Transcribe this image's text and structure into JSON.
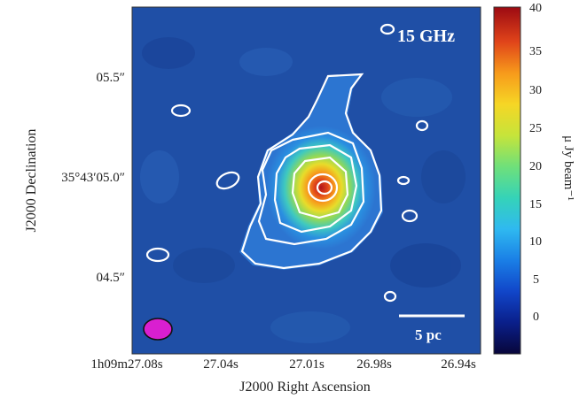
{
  "panel_label": "15 GHz",
  "scale_bar": {
    "label": "5 pc"
  },
  "x_axis": {
    "title": "J2000 Right Ascension",
    "tick_labels": [
      "1h09m27.08s",
      "27.04s",
      "27.01s",
      "26.98s",
      "26.94s"
    ]
  },
  "y_axis": {
    "title": "J2000 Declination",
    "tick_labels": [
      "05.5″",
      "35°43′05.0″",
      "04.5″"
    ]
  },
  "colorbar": {
    "title": "μ Jy beam⁻¹",
    "ticks": [
      "40",
      "35",
      "30",
      "25",
      "20",
      "15",
      "10",
      "5",
      "0"
    ],
    "range": [
      -5,
      40
    ],
    "colors": [
      "#08063a",
      "#0a1f8a",
      "#1146c9",
      "#1a7fe6",
      "#2fb9f0",
      "#35d3b8",
      "#6fe07a",
      "#c6e43a",
      "#f6d625",
      "#f79a1b",
      "#e0441a",
      "#9c0a12"
    ]
  },
  "colors": {
    "background": "#1f4fa6",
    "contour": "#ffffff",
    "beam": "#d91fd0"
  }
}
